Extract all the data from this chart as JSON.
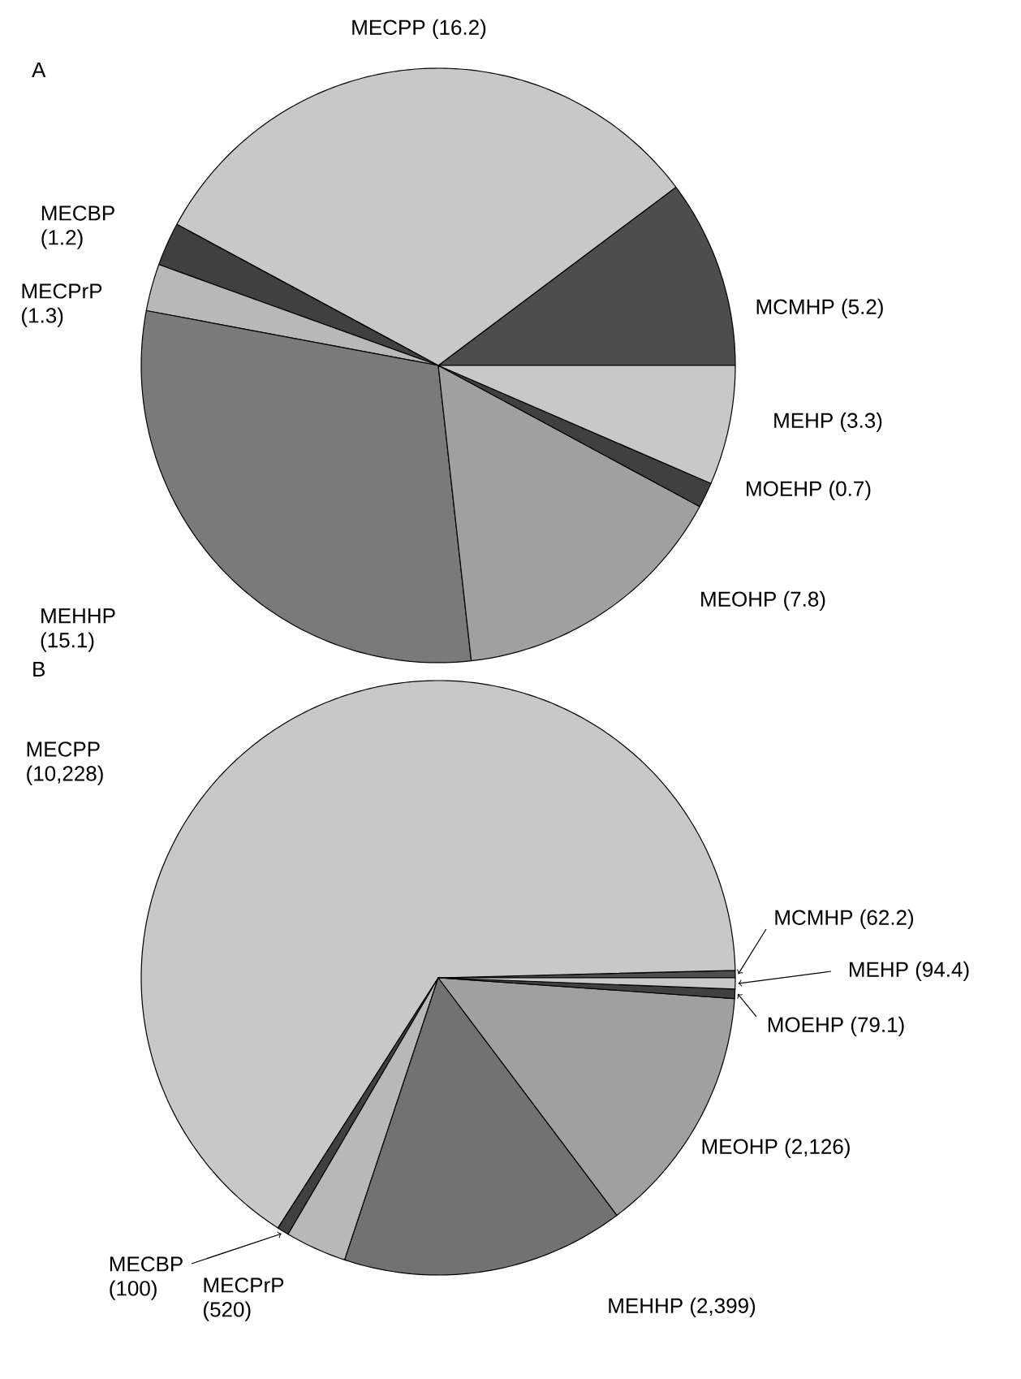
{
  "chart_data": [
    {
      "type": "pie",
      "title": "A",
      "categories": [
        "MCMHP",
        "MECPP",
        "MECBP",
        "MECPrP",
        "MEHHP",
        "MEOHP",
        "MOEHP",
        "MEHP"
      ],
      "values": [
        5.2,
        16.2,
        1.2,
        1.3,
        15.1,
        7.8,
        0.7,
        3.3
      ],
      "colors": [
        "#4d4d4d",
        "#c8c8c8",
        "#404040",
        "#b8b8b8",
        "#7a7a7a",
        "#a0a0a0",
        "#404040",
        "#c8c8c8"
      ],
      "value_labels": [
        "(5.2)",
        "(16.2)",
        "(1.2)",
        "(1.3)",
        "(15.1)",
        "(7.8)",
        "(0.7)",
        "(3.3)"
      ]
    },
    {
      "type": "pie",
      "title": "B",
      "categories": [
        "MCMHP",
        "MECPP",
        "MECBP",
        "MECPrP",
        "MEHHP",
        "MEOHP",
        "MOEHP",
        "MEHP"
      ],
      "values": [
        62.2,
        10228,
        100,
        520,
        2399,
        2126,
        79.1,
        94.4
      ],
      "colors": [
        "#4d4d4d",
        "#c8c8c8",
        "#404040",
        "#b8b8b8",
        "#727272",
        "#a0a0a0",
        "#404040",
        "#c8c8c8"
      ],
      "value_labels": [
        "(62.2)",
        "(10,228)",
        "(100)",
        "(520)",
        "(2,399)",
        "(2,126)",
        "(79.1)",
        "(94.4)"
      ]
    }
  ]
}
